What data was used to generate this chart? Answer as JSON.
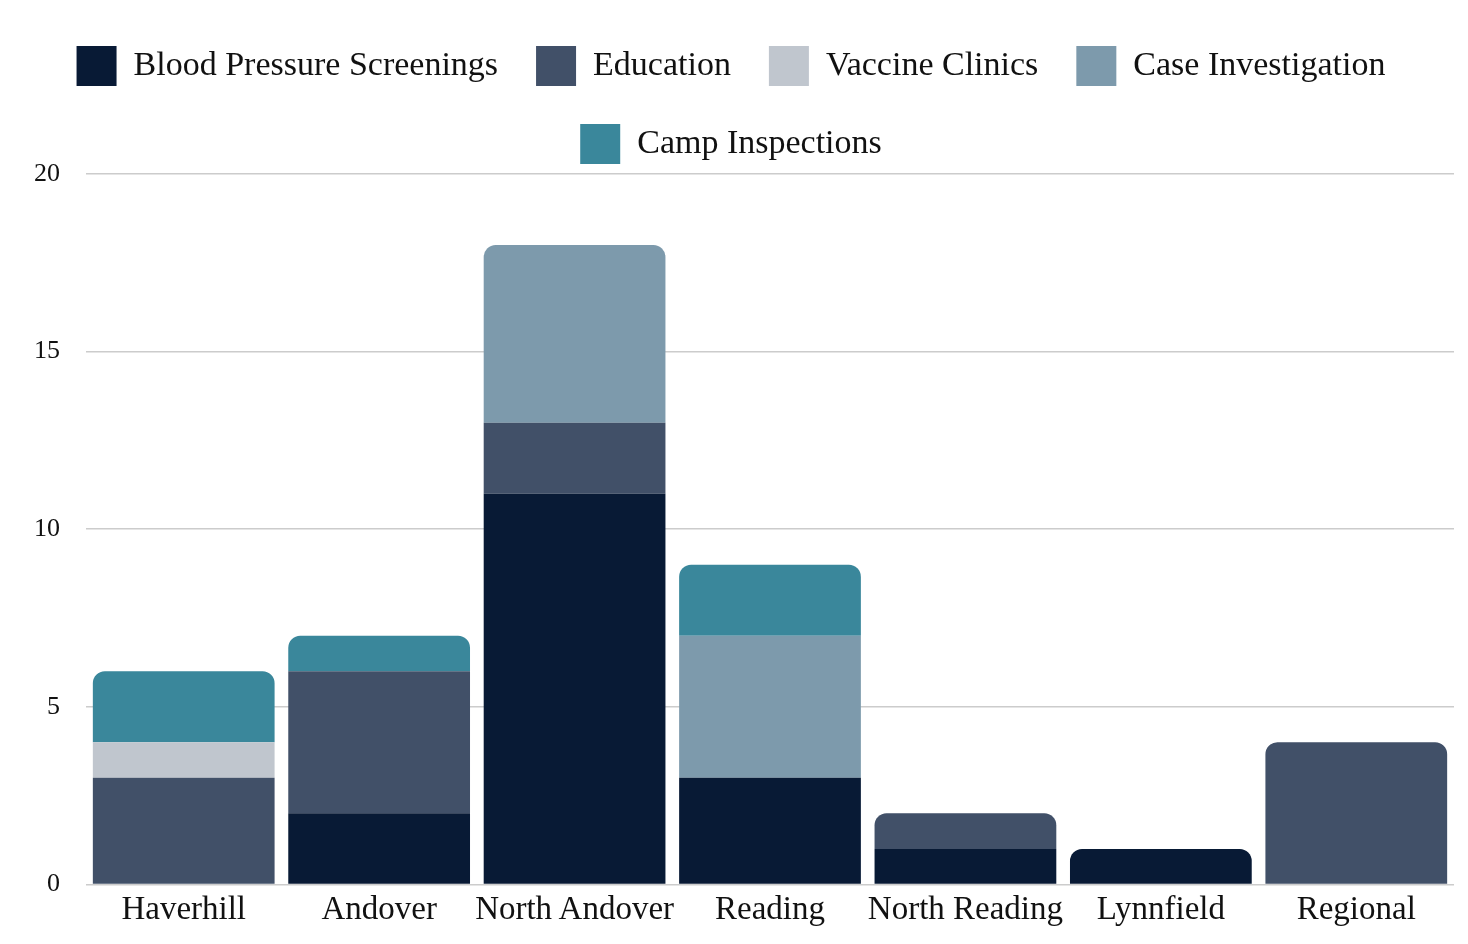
{
  "chart_data": {
    "type": "bar",
    "stacked": true,
    "categories": [
      "Haverhill",
      "Andover",
      "North Andover",
      "Reading",
      "North Reading",
      "Lynnfield",
      "Regional"
    ],
    "series": [
      {
        "name": "Blood Pressure Screenings",
        "color": "#081a35",
        "values": [
          0,
          2,
          11,
          3,
          1,
          1,
          0
        ]
      },
      {
        "name": "Education",
        "color": "#415068",
        "values": [
          3,
          4,
          2,
          0,
          1,
          0,
          4
        ]
      },
      {
        "name": "Vaccine Clinics",
        "color": "#c0c6ce",
        "values": [
          1,
          0,
          0,
          0,
          0,
          0,
          0
        ]
      },
      {
        "name": "Case Investigation",
        "color": "#7d9aac",
        "values": [
          0,
          0,
          5,
          4,
          0,
          0,
          0
        ]
      },
      {
        "name": "Camp Inspections",
        "color": "#3a879b",
        "values": [
          2,
          1,
          0,
          2,
          0,
          0,
          0
        ]
      }
    ],
    "ylim": [
      0,
      20
    ],
    "yticks": [
      0,
      5,
      10,
      15,
      20
    ],
    "grid": "y",
    "legend": "top"
  }
}
